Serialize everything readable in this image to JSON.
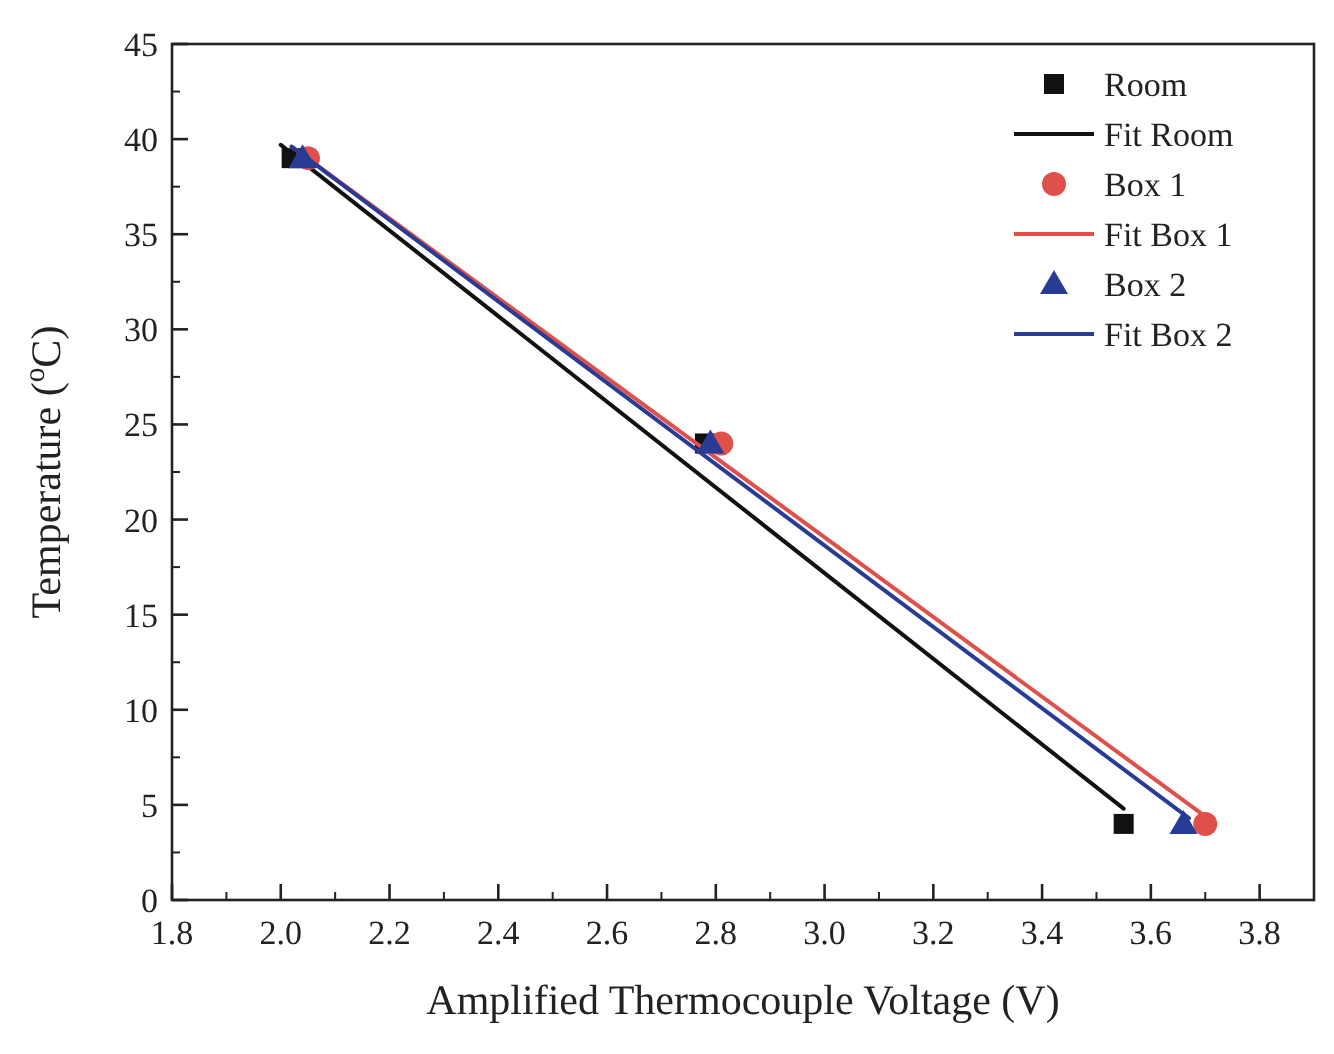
{
  "chart_data": {
    "type": "scatter",
    "xlabel": "Amplified Thermocouple Voltage (V)",
    "ylabel": "Temperature ($^{o}$C)",
    "xlim": [
      1.8,
      3.9
    ],
    "xticks": [
      1.8,
      {
        "value": 2,
        "label": "2.0"
      },
      2.2,
      2.4,
      2.6,
      2.8,
      {
        "value": 3,
        "label": "3.0"
      },
      3.2,
      3.4,
      3.6,
      3.8
    ],
    "ylim": [
      0,
      45
    ],
    "yticks": [
      0,
      5,
      10,
      15,
      20,
      25,
      30,
      35,
      40,
      45
    ],
    "grid": false,
    "legend": "top right",
    "series": [
      {
        "name": "Room",
        "marker": "square",
        "color": "#111111",
        "x": [
          2.02,
          2.78,
          3.55
        ],
        "values": [
          39,
          24,
          4
        ]
      },
      {
        "name": "Fit Room",
        "type": "line",
        "color": "#111111",
        "x": [
          2.0,
          3.55
        ],
        "values": [
          39.7,
          4.8
        ]
      },
      {
        "name": "Box 1",
        "marker": "circle",
        "color": "#e0504a",
        "x": [
          2.05,
          2.81,
          3.7
        ],
        "values": [
          39,
          24,
          4
        ]
      },
      {
        "name": "Fit Box 1",
        "type": "line",
        "color": "#e0504a",
        "x": [
          2.02,
          3.7
        ],
        "values": [
          39.6,
          4.4
        ]
      },
      {
        "name": "Box 2",
        "marker": "triangle",
        "color": "#283c96",
        "x": [
          2.04,
          2.79,
          3.66
        ],
        "values": [
          39,
          24,
          4
        ]
      },
      {
        "name": "Fit Box 2",
        "type": "line",
        "color": "#283c96",
        "x": [
          2.02,
          3.67
        ],
        "values": [
          39.6,
          4.3
        ]
      }
    ]
  }
}
